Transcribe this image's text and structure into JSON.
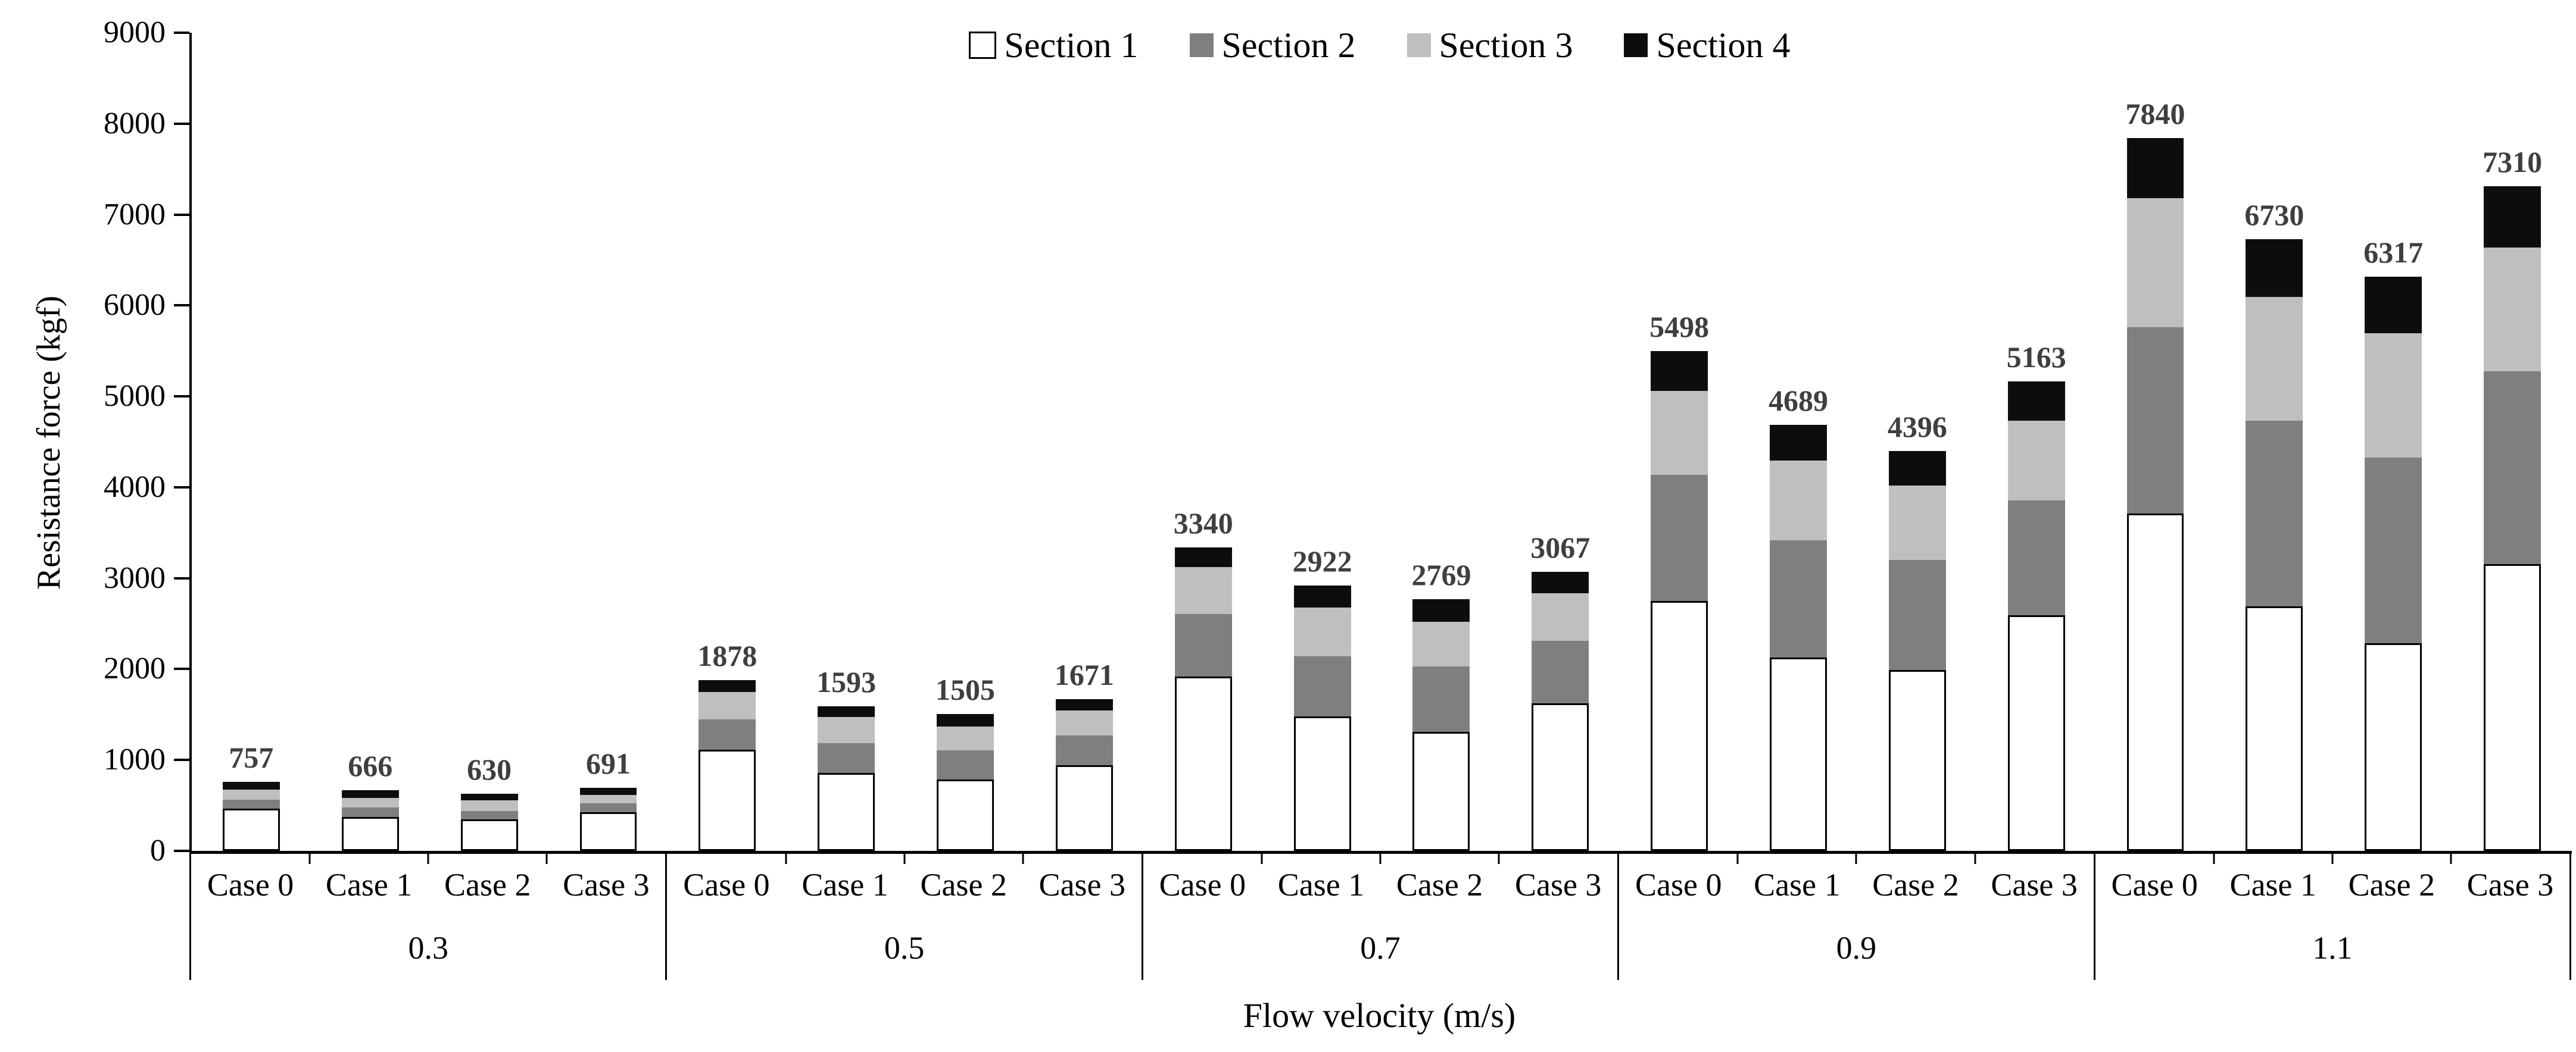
{
  "chart_data": {
    "type": "bar",
    "subtype": "stacked-vertical",
    "title": "",
    "ylabel": "Resistance force (kgf)",
    "xlabel": "Flow velocity (m/s)",
    "ylim": [
      0,
      9000
    ],
    "ytick_step": 1000,
    "yticks": [
      0,
      1000,
      2000,
      3000,
      4000,
      5000,
      6000,
      7000,
      8000,
      9000
    ],
    "grid": "off",
    "legend_position": "top-center",
    "series_names": [
      "Section 1",
      "Section 2",
      "Section 3",
      "Section 4"
    ],
    "colors": {
      "section1": "#ffffff",
      "section1_border": "#000000",
      "section2": "#7f7f7f",
      "section3": "#bfbfbf",
      "section4": "#0d0d0d",
      "value_label": "#3f3f3f",
      "axis": "#000000"
    },
    "groups": [
      {
        "velocity": "0.3",
        "bars": [
          {
            "case": "Case 0",
            "total": 757,
            "sections": [
              462,
              104,
              111,
              80
            ]
          },
          {
            "case": "Case 1",
            "total": 666,
            "sections": [
              373,
              104,
              107,
              82
            ]
          },
          {
            "case": "Case 2",
            "total": 630,
            "sections": [
              344,
              95,
              116,
              75
            ]
          },
          {
            "case": "Case 3",
            "total": 691,
            "sections": [
              424,
              100,
              89,
              78
            ]
          }
        ]
      },
      {
        "velocity": "0.5",
        "bars": [
          {
            "case": "Case 0",
            "total": 1878,
            "sections": [
              1110,
              338,
              297,
              133
            ]
          },
          {
            "case": "Case 1",
            "total": 1593,
            "sections": [
              860,
              322,
              288,
              123
            ]
          },
          {
            "case": "Case 2",
            "total": 1505,
            "sections": [
              785,
              321,
              263,
              136
            ]
          },
          {
            "case": "Case 3",
            "total": 1671,
            "sections": [
              943,
              330,
              274,
              124
            ]
          }
        ]
      },
      {
        "velocity": "0.7",
        "bars": [
          {
            "case": "Case 0",
            "total": 3340,
            "sections": [
              1921,
              682,
              521,
              216
            ]
          },
          {
            "case": "Case 1",
            "total": 2922,
            "sections": [
              1480,
              660,
              540,
              242
            ]
          },
          {
            "case": "Case 2",
            "total": 2769,
            "sections": [
              1306,
              726,
              490,
              247
            ]
          },
          {
            "case": "Case 3",
            "total": 3067,
            "sections": [
              1624,
              685,
              524,
              234
            ]
          }
        ]
      },
      {
        "velocity": "0.9",
        "bars": [
          {
            "case": "Case 0",
            "total": 5498,
            "sections": [
              2750,
              1390,
              922,
              436
            ]
          },
          {
            "case": "Case 1",
            "total": 4689,
            "sections": [
              2128,
              1286,
              881,
              394
            ]
          },
          {
            "case": "Case 2",
            "total": 4396,
            "sections": [
              1991,
              1207,
              823,
              375
            ]
          },
          {
            "case": "Case 3",
            "total": 5163,
            "sections": [
              2592,
              1266,
              874,
              431
            ]
          }
        ]
      },
      {
        "velocity": "1.1",
        "bars": [
          {
            "case": "Case 0",
            "total": 7840,
            "sections": [
              3714,
              2043,
              1422,
              661
            ]
          },
          {
            "case": "Case 1",
            "total": 6730,
            "sections": [
              2689,
              2043,
              1363,
              635
            ]
          },
          {
            "case": "Case 2",
            "total": 6317,
            "sections": [
              2285,
              2043,
              1364,
              625
            ]
          },
          {
            "case": "Case 3",
            "total": 7310,
            "sections": [
              3153,
              2121,
              1364,
              672
            ]
          }
        ]
      }
    ]
  }
}
